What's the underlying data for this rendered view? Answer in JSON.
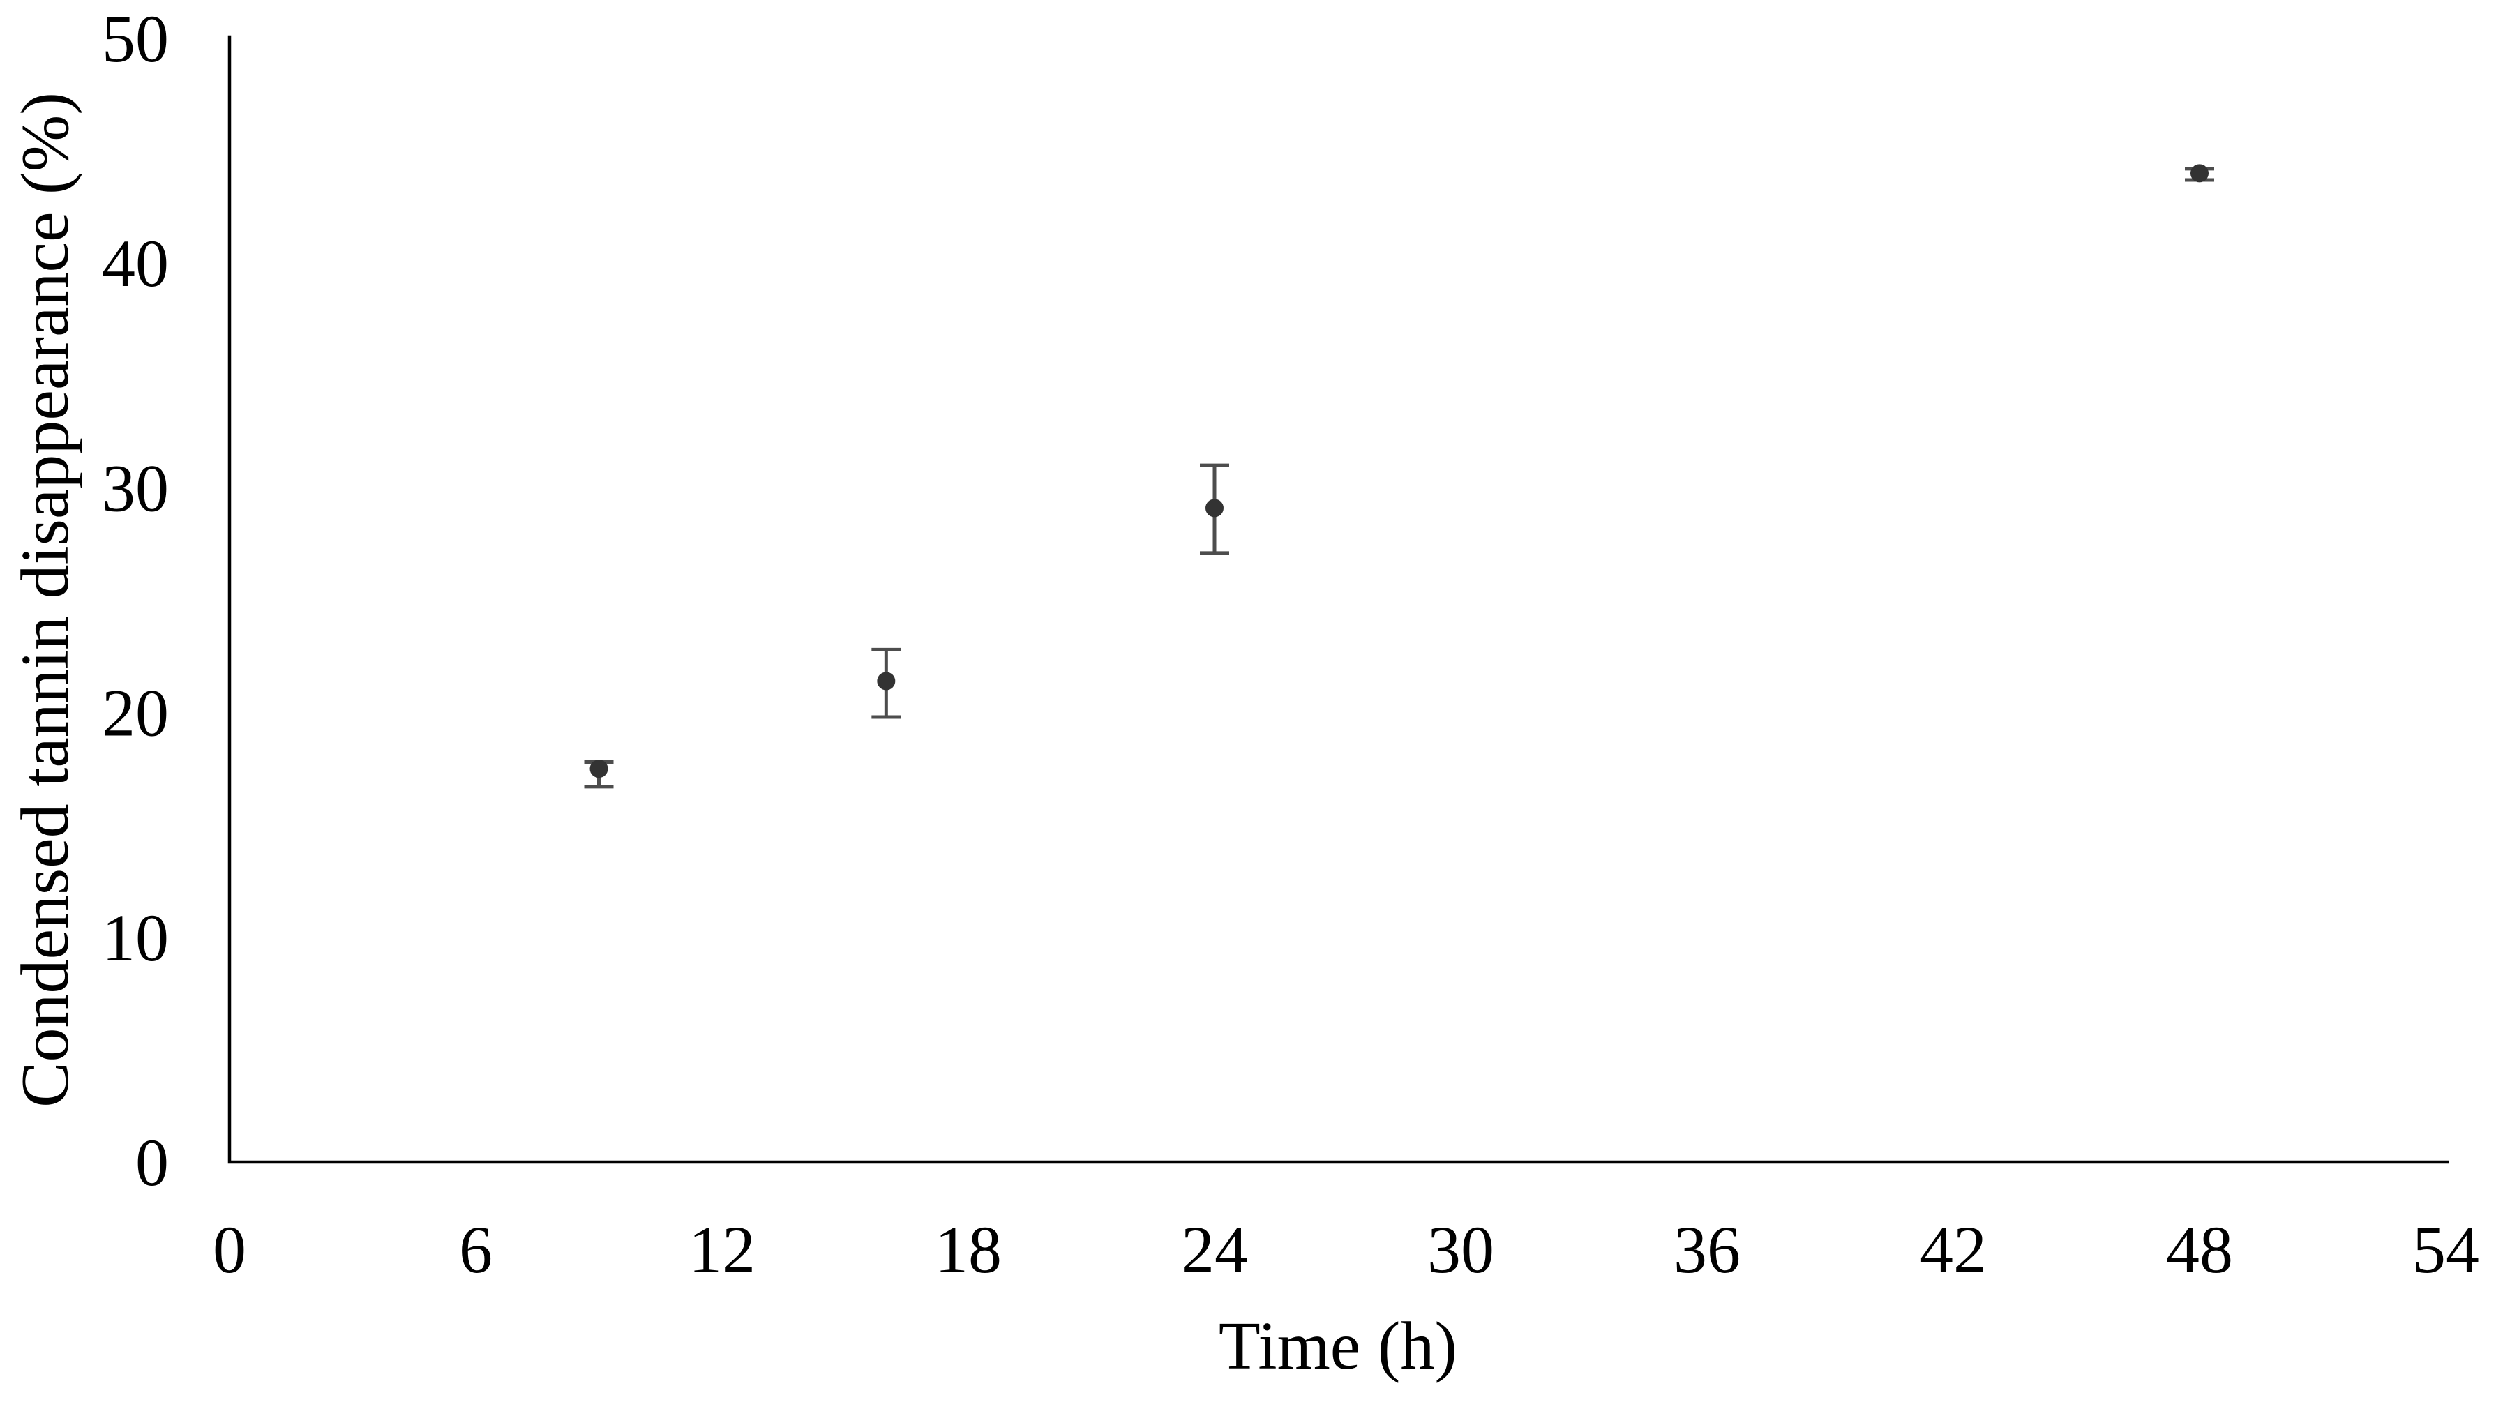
{
  "chart_data": {
    "type": "scatter",
    "title": "",
    "xlabel": "Time (h)",
    "ylabel": "Condensed tannin disappearance (%)",
    "xlim": [
      0,
      54
    ],
    "ylim": [
      0,
      50
    ],
    "x_ticks": [
      "0",
      "6",
      "12",
      "18",
      "24",
      "30",
      "36",
      "42",
      "48",
      "54"
    ],
    "x_tick_values": [
      0,
      6,
      12,
      18,
      24,
      30,
      36,
      42,
      48,
      54
    ],
    "y_ticks": [
      "0",
      "10",
      "20",
      "30",
      "40",
      "50"
    ],
    "y_tick_values": [
      0,
      10,
      20,
      30,
      40,
      50
    ],
    "grid": false,
    "legend": false,
    "series": [
      {
        "name": "Condensed tannin disappearance",
        "marker": "circle",
        "points": [
          {
            "x": 9,
            "y": 17.5,
            "err_low": 16.7,
            "err_high": 17.8
          },
          {
            "x": 16,
            "y": 21.4,
            "err_low": 19.8,
            "err_high": 22.8
          },
          {
            "x": 24,
            "y": 29.1,
            "err_low": 27.1,
            "err_high": 31.0
          },
          {
            "x": 48,
            "y": 44.0,
            "err_low": 43.7,
            "err_high": 44.2
          }
        ]
      }
    ],
    "colors": {
      "marker": "#333333",
      "error_bar": "#4d4d4d",
      "axis": "#000000",
      "text": "#000000",
      "background": "#ffffff"
    }
  }
}
